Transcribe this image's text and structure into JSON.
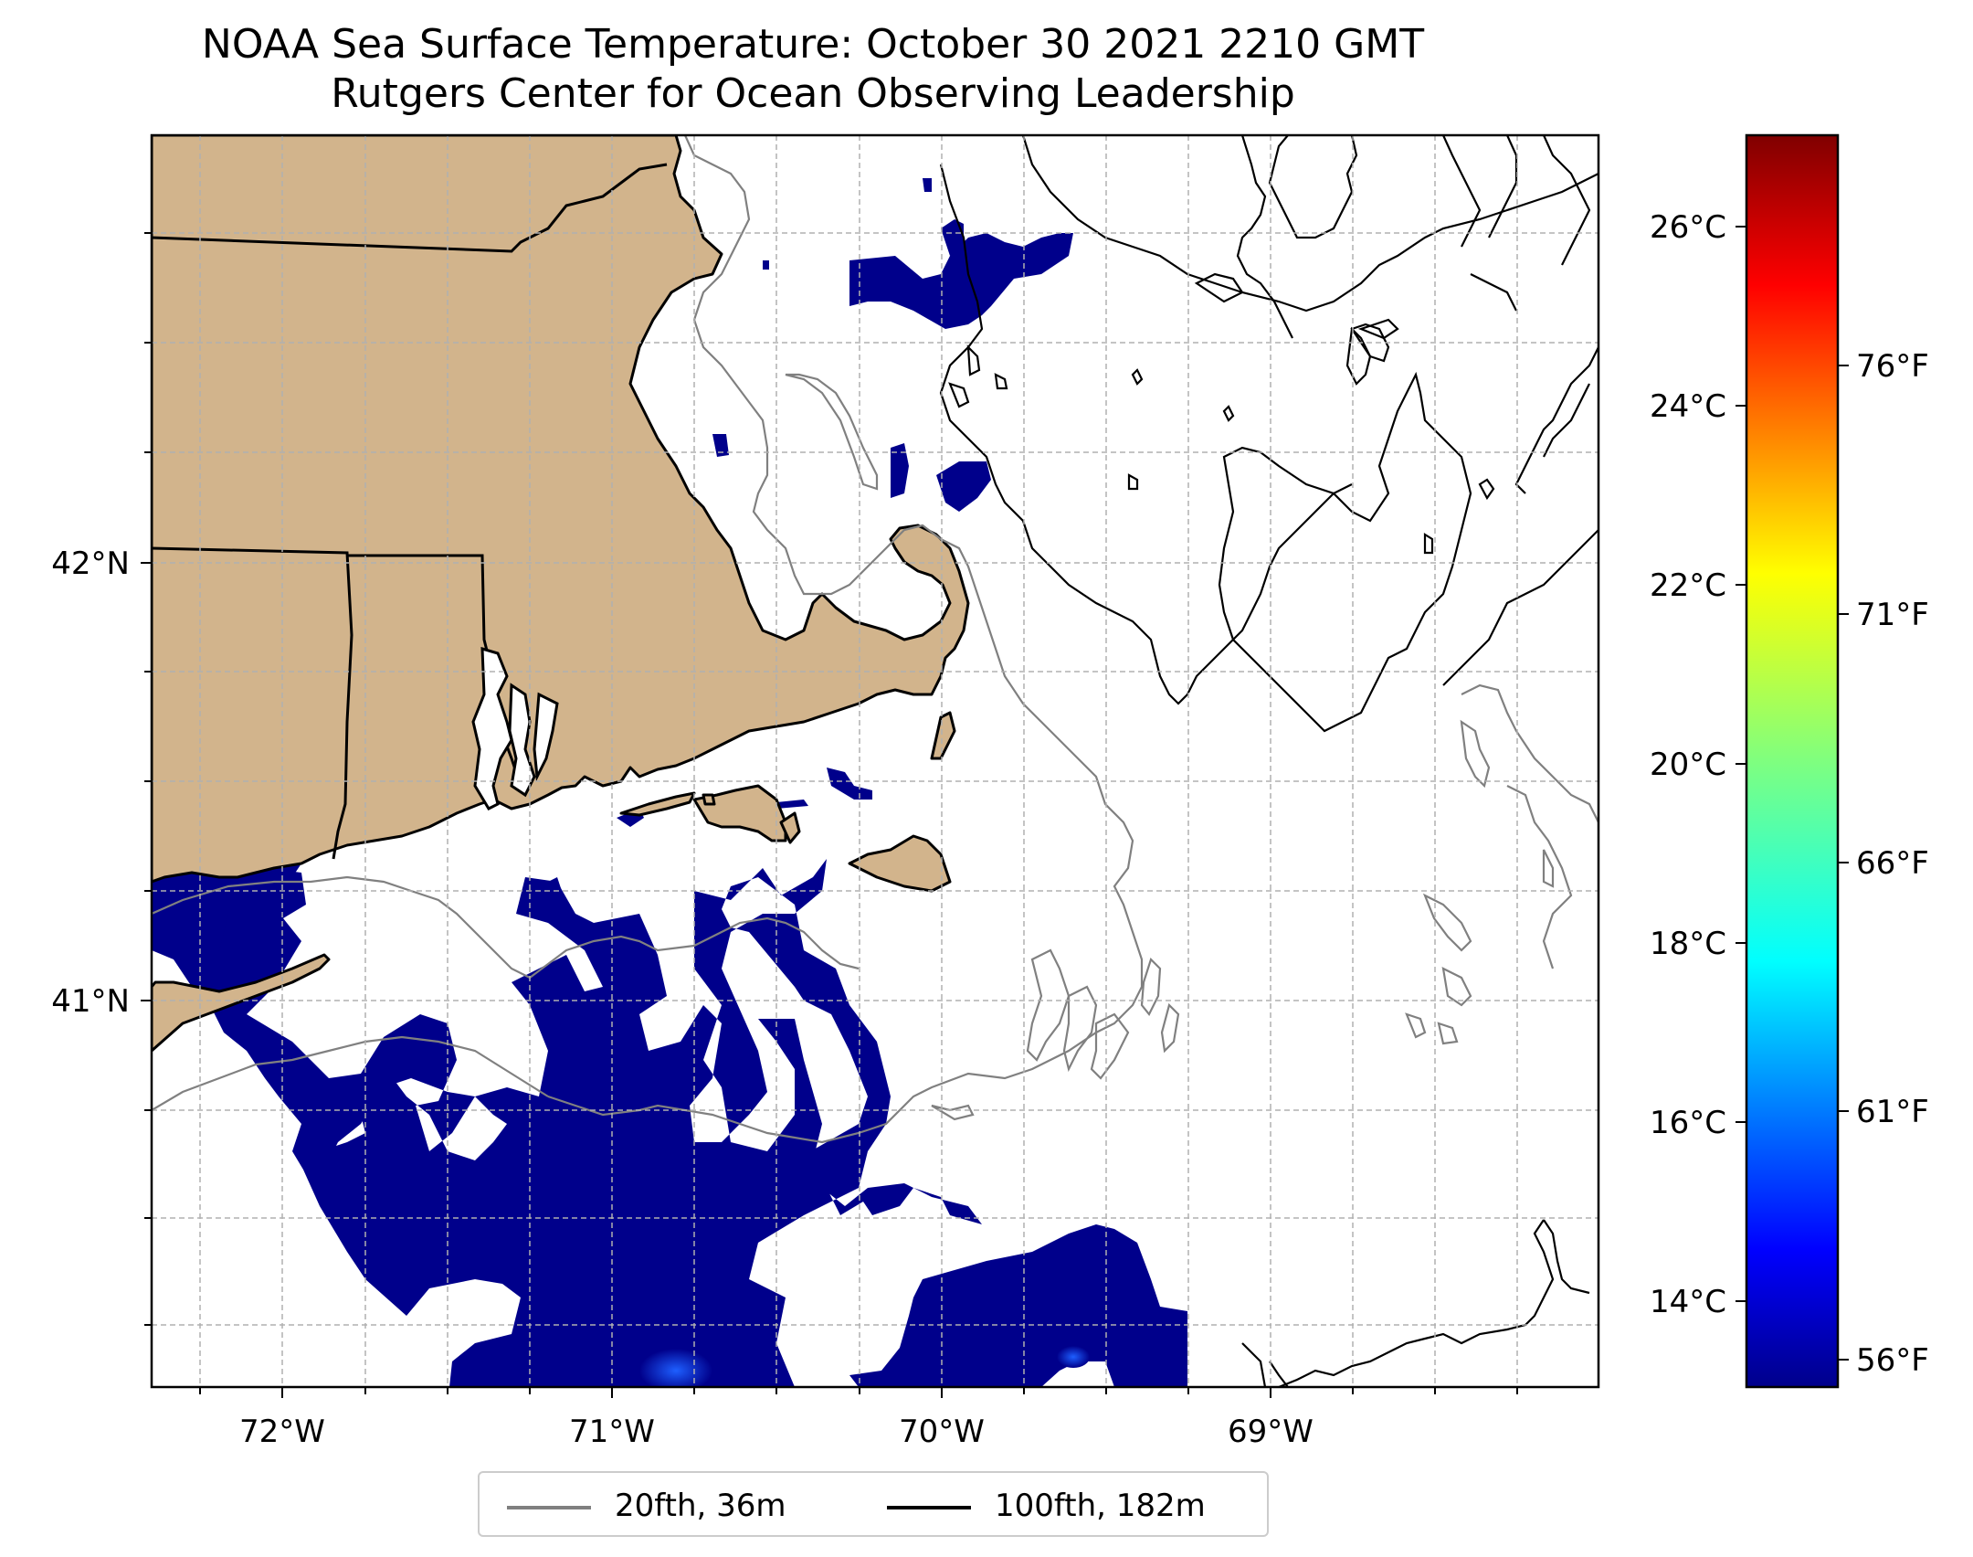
{
  "title": {
    "line1": "NOAA Sea Surface Temperature: October 30 2021 2210 GMT",
    "line2": "Rutgers Center for Ocean Observing Leadership"
  },
  "axes": {
    "x_ticks": [
      "72°W",
      "71°W",
      "70°W",
      "69°W"
    ],
    "y_ticks": [
      "42°N",
      "41°N"
    ]
  },
  "legend": {
    "items": [
      {
        "label": "20fth, 36m",
        "color": "#808080"
      },
      {
        "label": "100fth, 182m",
        "color": "#000000"
      }
    ]
  },
  "colorbar": {
    "celsius_ticks": [
      "26°C",
      "24°C",
      "22°C",
      "20°C",
      "18°C",
      "16°C",
      "14°C"
    ],
    "fahrenheit_ticks": [
      "76°F",
      "71°F",
      "66°F",
      "61°F",
      "56°F"
    ],
    "colormap": "jet"
  },
  "colors": {
    "land": "#d2b48c",
    "cold_sst": "#00008b",
    "ocean": "#ffffff",
    "grid": "#b0b0b0"
  }
}
